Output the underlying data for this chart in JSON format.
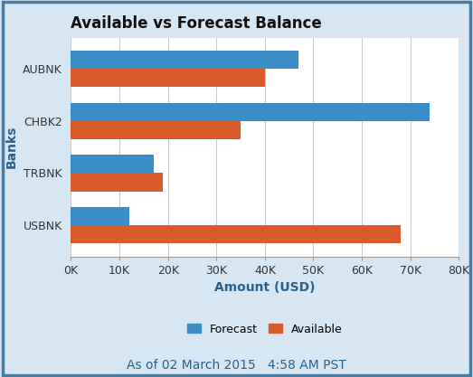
{
  "title": "Available vs Forecast Balance",
  "categories": [
    "USBNK",
    "TRBNK",
    "CHBK2",
    "AUBNK"
  ],
  "forecast": [
    12000,
    17000,
    74000,
    47000
  ],
  "available": [
    68000,
    19000,
    35000,
    40000
  ],
  "forecast_color": "#3A8DC5",
  "available_color": "#D95B2B",
  "xlabel": "Amount (USD)",
  "ylabel": "Banks",
  "xlim": [
    0,
    80000
  ],
  "xticks": [
    0,
    10000,
    20000,
    30000,
    40000,
    50000,
    60000,
    70000,
    80000
  ],
  "xtick_labels": [
    "0K",
    "10K",
    "20K",
    "30K",
    "40K",
    "50K",
    "60K",
    "70K",
    "80K"
  ],
  "legend_labels": [
    "Forecast",
    "Available"
  ],
  "footer_text": "As of 02 March 2015   4:58 AM PST",
  "background_color": "#D6E6F2",
  "plot_background_color": "#FFFFFF",
  "border_color": "#4A7BA0",
  "bar_height": 0.35,
  "title_fontsize": 12,
  "axis_label_fontsize": 10,
  "tick_fontsize": 9,
  "legend_fontsize": 9,
  "footer_fontsize": 10
}
